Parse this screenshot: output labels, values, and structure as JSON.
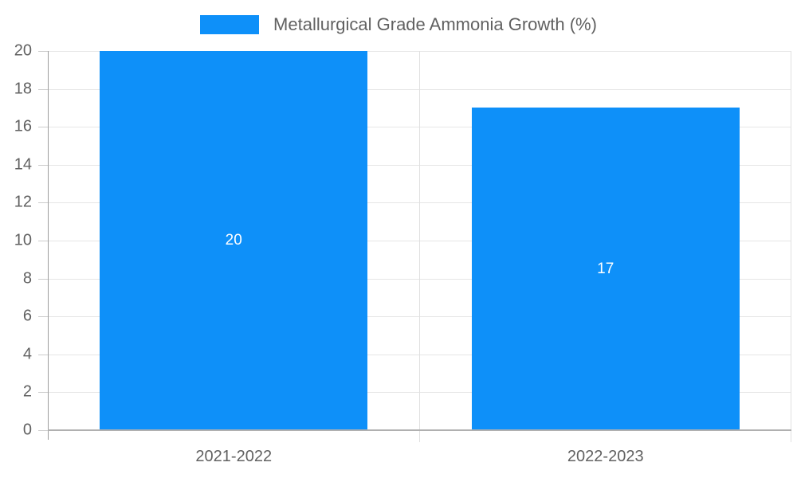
{
  "chart_data": {
    "type": "bar",
    "legend": {
      "label": "Metallurgical Grade Ammonia Growth (%)",
      "position": "top-center"
    },
    "categories": [
      "2021-2022",
      "2022-2023"
    ],
    "values": [
      20,
      17
    ],
    "bar_labels": [
      "20",
      "17"
    ],
    "xlabel": "",
    "ylabel": "",
    "ylim": [
      0,
      20
    ],
    "yticks": [
      0,
      2,
      4,
      6,
      8,
      10,
      12,
      14,
      16,
      18,
      20
    ],
    "grid": true,
    "bar_width_fraction": 0.72,
    "colors": {
      "bar": "#0e90f9",
      "grid": "#e6e6e6",
      "vgrid": "#e0e0e0",
      "axis": "#9e9e9e",
      "baseline": "#b0b0b0",
      "tick_mark": "#cccccc",
      "tick_label": "#616161",
      "category_label": "#616161",
      "legend_text": "#616161",
      "bar_label": "#ffffff",
      "background": "#ffffff"
    }
  }
}
